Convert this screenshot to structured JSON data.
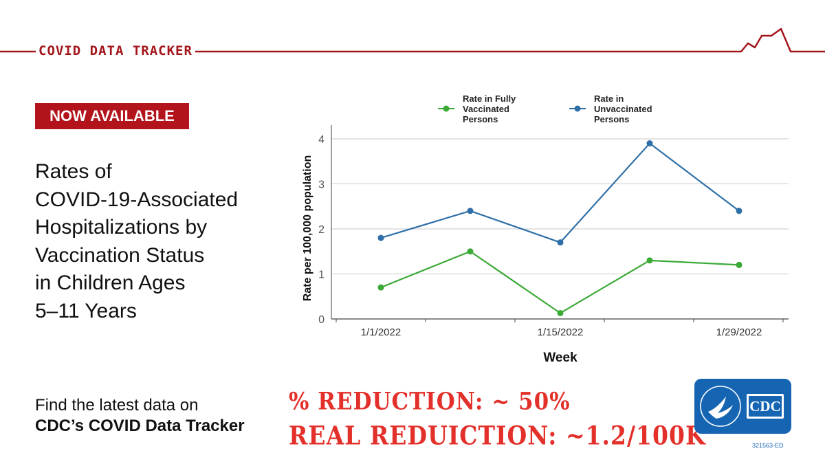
{
  "header": {
    "tracker_label": "COVID DATA TRACKER"
  },
  "badge": {
    "label": "NOW AVAILABLE"
  },
  "title_lines": [
    "Rates of",
    "COVID-19-Associated",
    "Hospitalizations by",
    "Vaccination Status",
    "in Children Ages",
    "5–11 Years"
  ],
  "footer": {
    "line1": "Find the latest data on",
    "line2": "CDC’s COVID Data Tracker",
    "logo_text": "CDC",
    "code": "321563-ED"
  },
  "annotations": {
    "line1": "% REDUCTION: ~ 50%",
    "line2": "REAL REDUICTION: ~1.2/100K"
  },
  "colors": {
    "brand_red": "#a3151b",
    "badge_red": "#b3141b",
    "annotation_red": "#e3302a",
    "cdc_blue": "#1565b3",
    "vaccinated_green": "#3aa935",
    "unvaccinated_blue": "#2f6fa7"
  },
  "chart_data": {
    "type": "line",
    "x": [
      "1/1/2022",
      "1/8/2022",
      "1/15/2022",
      "1/22/2022",
      "1/29/2022"
    ],
    "x_tick_labels": [
      "1/1/2022",
      "",
      "1/15/2022",
      "",
      "1/29/2022"
    ],
    "series": [
      {
        "name": "Rate in Fully Vaccinated Persons",
        "legend_lines": [
          "Rate in Fully",
          "Vaccinated",
          "Persons"
        ],
        "color": "#3aa935",
        "values": [
          0.7,
          1.5,
          0.13,
          1.3,
          1.2
        ]
      },
      {
        "name": "Rate in Unvaccinated Persons",
        "legend_lines": [
          "Rate in",
          "Unvaccinated",
          "Persons"
        ],
        "color": "#2f6fa7",
        "values": [
          1.8,
          2.4,
          1.7,
          3.9,
          2.4
        ]
      }
    ],
    "xlabel": "Week",
    "ylabel": "Rate per 100,000 population",
    "ylim": [
      0,
      4
    ],
    "yticks": [
      0,
      1,
      2,
      3,
      4
    ],
    "grid": true,
    "legend_position": "top"
  }
}
